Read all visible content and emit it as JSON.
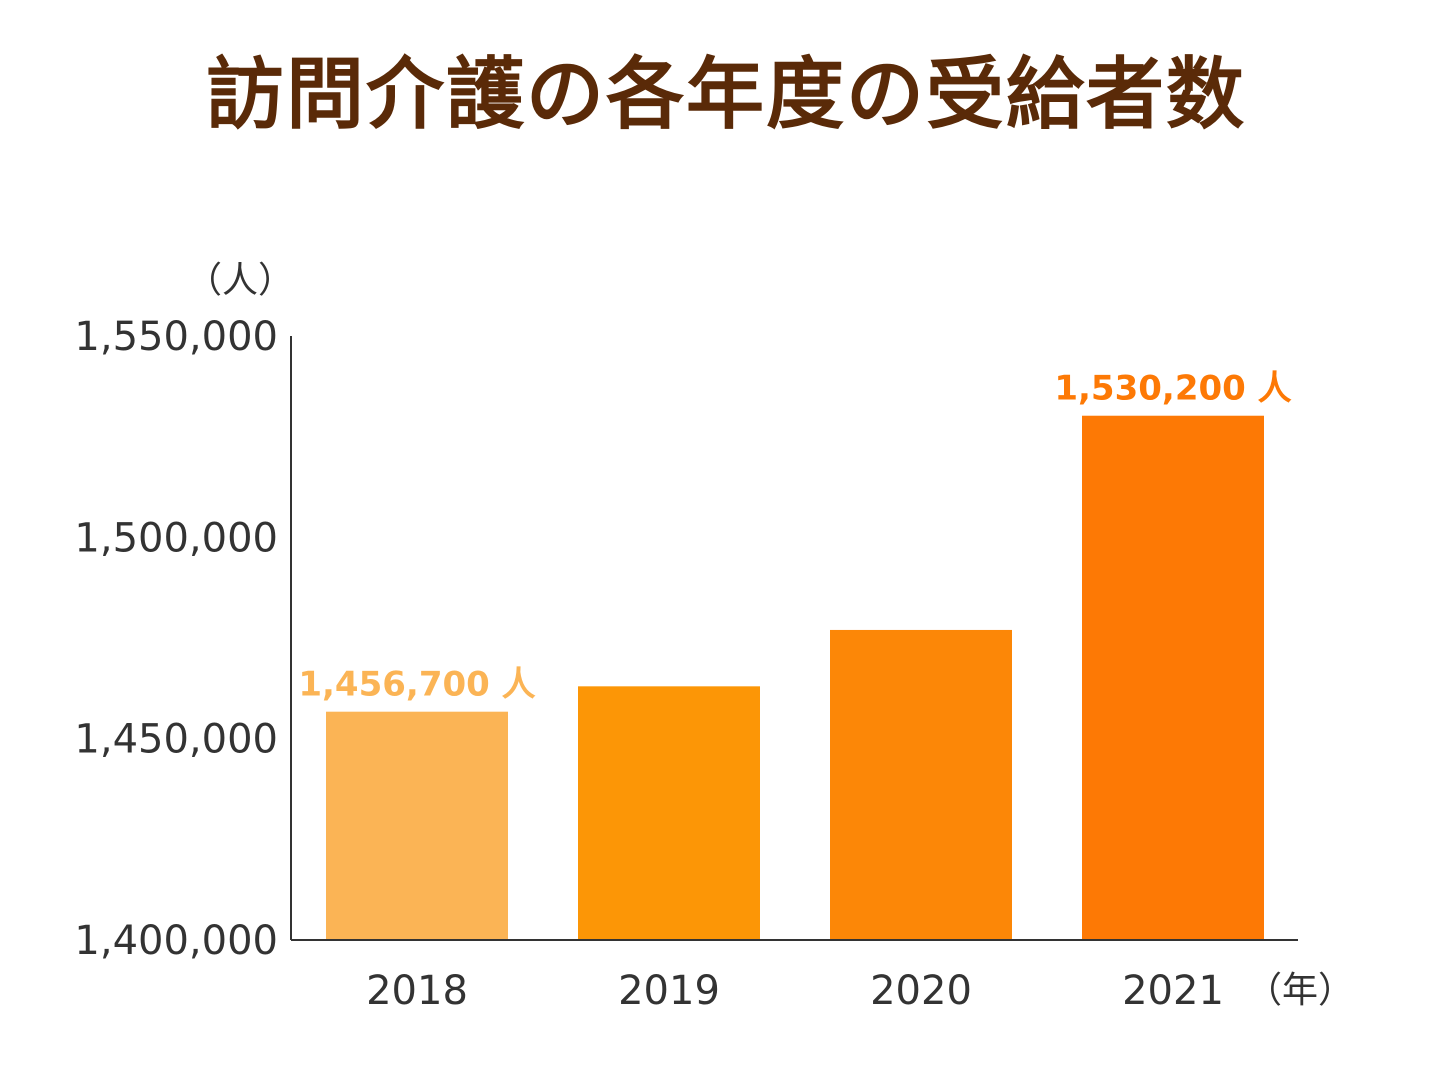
{
  "chart_data": {
    "type": "bar",
    "title": "訪問介護の各年度の受給者数",
    "categories": [
      "2018",
      "2019",
      "2020",
      "2021"
    ],
    "values": [
      1456700,
      1463000,
      1477000,
      1530200
    ],
    "ylim": [
      1400000,
      1550000
    ],
    "yticks": [
      1400000,
      1450000,
      1500000,
      1550000
    ],
    "ytick_labels": [
      "1,400,000",
      "1,450,000",
      "1,500,000",
      "1,550,000"
    ],
    "ylabel": "（人）",
    "xlabel": "（年）",
    "data_labels": [
      "1,456,700 人",
      "",
      "",
      "1,530,200 人"
    ],
    "bar_colors": [
      "#fbb455",
      "#fc9606",
      "#fc8707",
      "#fd7905"
    ],
    "label_colors": [
      "#fbb455",
      "#fc9606",
      "#fc8707",
      "#fd7905"
    ],
    "title_color": "#5a2a08",
    "axis_color": "#333333",
    "legend": "none",
    "grid": false
  }
}
